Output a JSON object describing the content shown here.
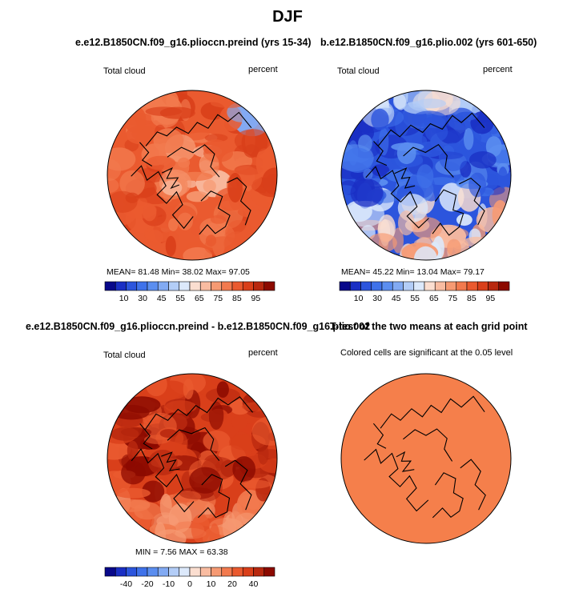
{
  "figure": {
    "title": "DJF"
  },
  "chart_data": [
    {
      "type": "heatmap",
      "projection": "north-polar-stereographic",
      "title": "e.e12.B1850CN.f09_g16.plioccn.preind (yrs 15-34)",
      "field_label": "Total cloud",
      "units": "percent",
      "stats": {
        "mean": "81.48",
        "min": "38.02",
        "max": "97.05"
      },
      "stats_text": "MEAN=  81.48   Min=  38.02   Max=  97.05",
      "colorbar_ticks": [
        "10",
        "30",
        "45",
        "55",
        "65",
        "75",
        "85",
        "95"
      ],
      "dominant_range": [
        75,
        95
      ]
    },
    {
      "type": "heatmap",
      "projection": "north-polar-stereographic",
      "title": "b.e12.B1850CN.f09_g16.plio.002 (yrs 601-650)",
      "field_label": "Total cloud",
      "units": "percent",
      "stats": {
        "mean": "45.22",
        "min": "13.04",
        "max": "79.17"
      },
      "stats_text": "MEAN=  45.22   Min=  13.04   Max=  79.17",
      "colorbar_ticks": [
        "10",
        "30",
        "45",
        "55",
        "65",
        "75",
        "85",
        "95"
      ],
      "dominant_range": [
        30,
        55
      ]
    },
    {
      "type": "heatmap",
      "projection": "north-polar-stereographic",
      "title": "e.e12.B1850CN.f09_g16.plioccn.preind - b.e12.B1850CN.f09_g16.plio.002",
      "field_label": "Total cloud",
      "units": "percent",
      "stats": {
        "min": "7.56",
        "max": "63.38"
      },
      "stats_text": "MIN =   7.56  MAX =  63.38",
      "colorbar_ticks": [
        "-40",
        "-20",
        "-10",
        "0",
        "10",
        "20",
        "40"
      ],
      "dominant_range": [
        20,
        50
      ]
    },
    {
      "type": "heatmap",
      "projection": "north-polar-stereographic",
      "title": "T-test of the two means at each grid point",
      "note": "Colored cells are significant at the 0.05 level",
      "significant_everywhere": true
    }
  ],
  "colors": {
    "colorbar": [
      "#08088a",
      "#1a2fc4",
      "#2c55dd",
      "#3f72ea",
      "#5b8ef0",
      "#82aaf3",
      "#b3cdf7",
      "#dce9fb",
      "#fbded0",
      "#f9bca1",
      "#f69a73",
      "#f27a4e",
      "#ea5a2f",
      "#d93f1a",
      "#b8280f",
      "#8c0a00"
    ],
    "ttest_fill": "#f57f4b",
    "coast": "#000000"
  }
}
